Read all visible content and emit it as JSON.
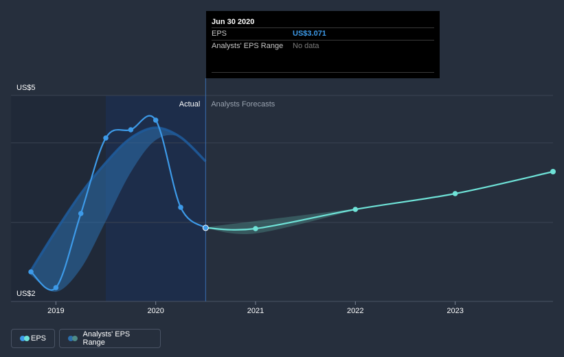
{
  "tooltip": {
    "date": "Jun 30 2020",
    "rows": [
      {
        "label": "EPS",
        "value": "US$3.071"
      },
      {
        "label": "Analysts' EPS Range",
        "value": "No data"
      }
    ]
  },
  "legend": {
    "items": [
      {
        "label": "EPS",
        "colors": [
          "#3d9ae8",
          "#6fe3d8"
        ]
      },
      {
        "label": "Analysts' EPS Range",
        "colors": [
          "#2c6fad",
          "#4e8b88"
        ]
      }
    ]
  },
  "colors": {
    "background": "#262f3d",
    "actual_line": "#3d9ae8",
    "forecast_line": "#6fe3d8",
    "actual_band": "#2c6fad",
    "forecast_band": "#4e8b88"
  },
  "chart_data": {
    "type": "line",
    "title": "",
    "xlabel": "",
    "ylabel": "",
    "y_tick_labels": [
      "US$5",
      "US$2"
    ],
    "ylim": [
      2,
      5
    ],
    "x_tick_labels": [
      "2019",
      "2020",
      "2021",
      "2022",
      "2023"
    ],
    "xlim": [
      2018.55,
      2023.98
    ],
    "region_labels": {
      "actual": "Actual",
      "forecast": "Analysts Forecasts"
    },
    "divider_x": 2020.5,
    "highlight_start_x": 2019.5,
    "grid": true,
    "legend_placement": "bottom-left",
    "series": [
      {
        "name": "EPS",
        "segment": "actual",
        "points": [
          [
            2018.75,
            2.43
          ],
          [
            2019.0,
            2.2
          ],
          [
            2019.25,
            3.28
          ],
          [
            2019.5,
            4.38
          ],
          [
            2019.75,
            4.5
          ],
          [
            2020.0,
            4.64
          ],
          [
            2020.25,
            3.37
          ],
          [
            2020.5,
            3.071
          ]
        ]
      },
      {
        "name": "EPS",
        "segment": "forecast",
        "points": [
          [
            2020.5,
            3.071
          ],
          [
            2021.0,
            3.06
          ],
          [
            2022.0,
            3.34
          ],
          [
            2023.0,
            3.57
          ],
          [
            2023.98,
            3.89
          ]
        ]
      }
    ],
    "ranges": [
      {
        "name": "Analysts' EPS Range",
        "segment": "actual",
        "upper": [
          [
            2018.75,
            2.45
          ],
          [
            2019.0,
            3.03
          ],
          [
            2019.25,
            3.57
          ],
          [
            2019.5,
            4.02
          ],
          [
            2019.75,
            4.38
          ],
          [
            2020.0,
            4.53
          ],
          [
            2020.25,
            4.39
          ],
          [
            2020.5,
            4.04
          ]
        ],
        "lower": [
          [
            2018.75,
            2.38
          ],
          [
            2019.0,
            2.14
          ],
          [
            2019.25,
            2.48
          ],
          [
            2019.5,
            3.17
          ],
          [
            2019.75,
            3.88
          ],
          [
            2020.0,
            4.35
          ],
          [
            2020.25,
            4.39
          ],
          [
            2020.5,
            4.04
          ]
        ]
      },
      {
        "name": "Analysts' EPS Range",
        "segment": "forecast",
        "upper": [
          [
            2020.5,
            3.08
          ],
          [
            2021.0,
            3.17
          ],
          [
            2022.0,
            3.35
          ]
        ],
        "lower": [
          [
            2020.5,
            3.07
          ],
          [
            2021.0,
            2.99
          ],
          [
            2022.0,
            3.33
          ]
        ]
      }
    ]
  }
}
